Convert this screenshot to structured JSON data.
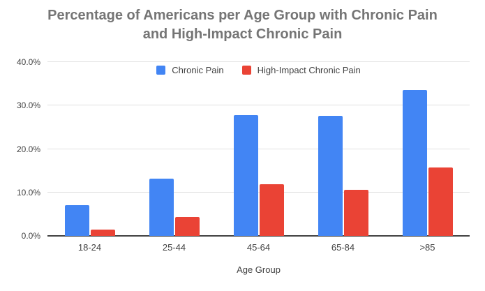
{
  "title_line1": "Percentage of Americans per Age Group with Chronic Pain",
  "title_line2": "and High-Impact Chronic Pain",
  "colors": {
    "chronic_pain": "#4285F4",
    "high_impact_chronic_pain": "#EA4335",
    "title_text": "#757575",
    "axis_text": "#424242",
    "gridline": "#e0e0e0",
    "axis_line": "#424242",
    "background": "#ffffff"
  },
  "chart_data": {
    "type": "bar",
    "title": "Percentage of Americans per Age Group with Chronic Pain and High-Impact Chronic Pain",
    "xlabel": "Age Group",
    "ylabel": "",
    "ylim": [
      0,
      40
    ],
    "yticks": [
      0,
      10,
      20,
      30,
      40
    ],
    "ytick_labels": [
      "0.0%",
      "10.0%",
      "20.0%",
      "30.0%",
      "40.0%"
    ],
    "grid": true,
    "legend_position": "top-center-inside-plot",
    "categories": [
      "18-24",
      "25-44",
      "45-64",
      "65-84",
      ">85"
    ],
    "series": [
      {
        "name": "Chronic Pain",
        "color": "#4285F4",
        "values": [
          7.0,
          13.1,
          27.8,
          27.6,
          33.5
        ]
      },
      {
        "name": "High-Impact Chronic Pain",
        "color": "#EA4335",
        "values": [
          1.5,
          4.3,
          11.9,
          10.6,
          15.7
        ]
      }
    ]
  }
}
